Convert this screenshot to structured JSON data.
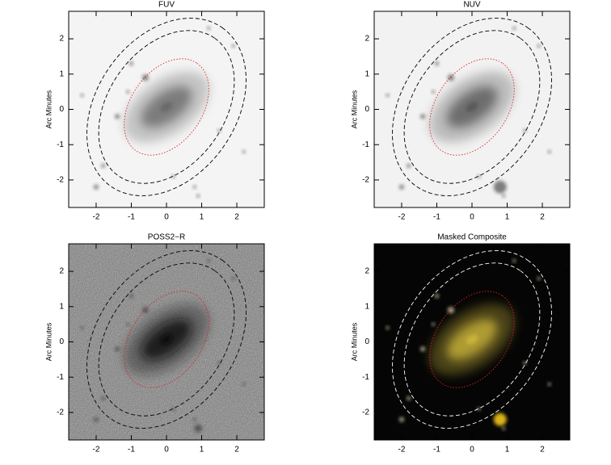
{
  "chart_data": [
    {
      "type": "image",
      "title": "FUV",
      "ylabel": "Arc Minutes",
      "background": "#f4f4f4",
      "galaxy": "#6a6a6a",
      "xlim": [
        -2.78,
        2.78
      ],
      "ylim": [
        -2.78,
        2.78
      ],
      "xticks": [
        -2,
        -1,
        0,
        1,
        2
      ],
      "yticks": [
        -2,
        -1,
        0,
        1,
        2
      ]
    },
    {
      "type": "image",
      "title": "NUV",
      "ylabel": "Arc Minutes",
      "background": "#f2f2f2",
      "galaxy": "#5a5a5a",
      "xlim": [
        -2.78,
        2.78
      ],
      "ylim": [
        -2.78,
        2.78
      ],
      "xticks": [
        -2,
        -1,
        0,
        1,
        2
      ],
      "yticks": [
        -2,
        -1,
        0,
        1,
        2
      ]
    },
    {
      "type": "image",
      "title": "POSS2−R",
      "ylabel": "Arc Minutes",
      "background": "#bdbdbd",
      "galaxy": "#111111",
      "xlim": [
        -2.78,
        2.78
      ],
      "ylim": [
        -2.78,
        2.78
      ],
      "xticks": [
        -2,
        -1,
        0,
        1,
        2
      ],
      "yticks": [
        -2,
        -1,
        0,
        1,
        2
      ]
    },
    {
      "type": "image",
      "title": "Masked Composite",
      "ylabel": "Arc Minutes",
      "background": "#050505",
      "galaxy": "#c9b23a",
      "xlim": [
        -2.78,
        2.78
      ],
      "ylim": [
        -2.78,
        2.78
      ],
      "xticks": [
        -2,
        -1,
        0,
        1,
        2
      ],
      "yticks": [
        -2,
        -1,
        0,
        1,
        2
      ]
    }
  ]
}
